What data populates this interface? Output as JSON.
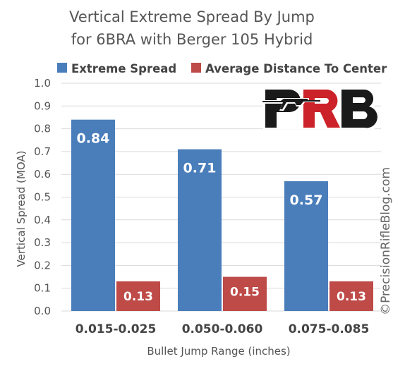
{
  "chart_data": {
    "type": "bar",
    "title": [
      "Vertical Extreme Spread By Jump",
      "for 6BRA with Berger 105 Hybrid"
    ],
    "xlabel": "Bullet Jump Range (inches)",
    "ylabel": "Vertical Spread (MOA)",
    "ylim": [
      0,
      1.0
    ],
    "yticks": [
      "0.0",
      "0.1",
      "0.2",
      "0.3",
      "0.4",
      "0.5",
      "0.6",
      "0.7",
      "0.8",
      "0.9",
      "1.0"
    ],
    "grid": true,
    "legend_position": "top",
    "categories": [
      "0.015-0.025",
      "0.050-0.060",
      "0.075-0.085"
    ],
    "series": [
      {
        "name": "Extreme Spread",
        "color": "#4a7ebb",
        "values": [
          0.84,
          0.71,
          0.57
        ],
        "labels": [
          "0.84",
          "0.71",
          "0.57"
        ]
      },
      {
        "name": "Average Distance To Center",
        "color": "#be4b48",
        "values": [
          0.13,
          0.15,
          0.13
        ],
        "labels": [
          "0.13",
          "0.15",
          "0.13"
        ]
      }
    ]
  },
  "logo": {
    "text": "PRB",
    "name": "prb-logo"
  },
  "watermark": "©PrecisionRifleBlog.com"
}
